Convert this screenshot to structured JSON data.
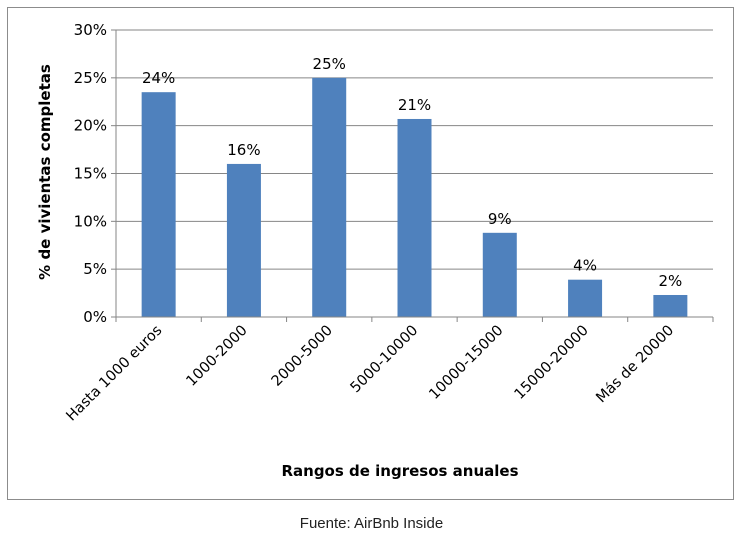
{
  "chart_data": {
    "type": "bar",
    "categories": [
      "Hasta 1000 euros",
      "1000-2000",
      "2000-5000",
      "5000-10000",
      "10000-15000",
      "15000-20000",
      "Más de 20000"
    ],
    "values": [
      23.5,
      16,
      25,
      20.7,
      8.8,
      3.9,
      2.3
    ],
    "data_labels": [
      "24%",
      "16%",
      "25%",
      "21%",
      "9%",
      "4%",
      "2%"
    ],
    "title": "",
    "xlabel": "Rangos de ingresos anuales",
    "ylabel": "% de vivientas completas",
    "ylim": [
      0,
      30
    ],
    "yticks": [
      0,
      5,
      10,
      15,
      20,
      25,
      30
    ],
    "ytick_labels": [
      "0%",
      "5%",
      "10%",
      "15%",
      "20%",
      "25%",
      "30%"
    ],
    "grid": "horizontal",
    "legend": "none",
    "bar_color": "#4f81bd"
  },
  "source_note": "Fuente: AirBnb Inside"
}
